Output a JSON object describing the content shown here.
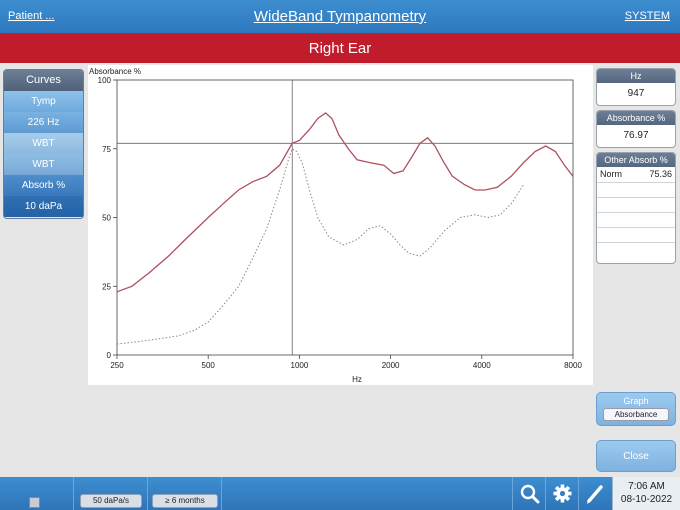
{
  "header": {
    "patient_link": "Patient ...",
    "title": "WideBand Tympanometry",
    "system_link": "SYSTEM"
  },
  "ear_banner": "Right Ear",
  "curves_panel": {
    "title": "Curves",
    "items": [
      "Tymp",
      "226 Hz",
      "WBT",
      "WBT",
      "Absorb %",
      "10 daPa"
    ]
  },
  "readouts": {
    "hz_label": "Hz",
    "hz_value": "947",
    "absorbance_label": "Absorbance %",
    "absorbance_value": "76.97",
    "other_label": "Other Absorb %",
    "other_rows": [
      {
        "name": "Norm",
        "value": "75.36"
      }
    ]
  },
  "graph_button": {
    "label": "Graph",
    "selected": "Absorbance"
  },
  "close_button": "Close",
  "bottom": {
    "pressure_rate": "50 daPa/s",
    "age": "≥ 6 months",
    "time": "7:06 AM",
    "date": "08-10-2022"
  },
  "colors": {
    "topbar": "#2e78bd",
    "ear_banner": "#c01c2c",
    "measured_curve": "#b0505e",
    "norm_curve": "#888888"
  },
  "icons": [
    "search-icon",
    "gear-icon",
    "pencil-icon"
  ],
  "chart_data": {
    "type": "line",
    "ylabel": "Absorbance %",
    "xlabel": "Hz",
    "xscale": "log",
    "xlim": [
      250,
      8000
    ],
    "ylim": [
      0,
      100
    ],
    "xticks": [
      250,
      500,
      1000,
      2000,
      4000,
      8000
    ],
    "yticks": [
      0,
      25,
      50,
      75,
      100
    ],
    "cursor": {
      "x": 947,
      "y": 76.97
    },
    "grid": false,
    "series": [
      {
        "x": [
          250,
          280,
          320,
          370,
          420,
          500,
          560,
          630,
          700,
          780,
          860,
          947,
          1000,
          1080,
          1150,
          1220,
          1280,
          1350,
          1450,
          1550,
          1700,
          1900,
          2050,
          2200,
          2350,
          2500,
          2650,
          2800,
          3000,
          3200,
          3500,
          3800,
          4100,
          4500,
          5000,
          5500,
          6000,
          6500,
          7000,
          7500,
          8000
        ],
        "y": [
          23,
          25,
          30,
          36,
          42,
          50,
          55,
          60,
          63,
          65,
          69,
          76.97,
          78,
          82,
          86,
          88,
          86,
          80,
          75,
          71,
          70,
          69,
          66,
          67,
          72,
          77,
          79,
          76,
          70,
          65,
          62,
          60,
          60,
          61,
          65,
          70,
          74,
          76,
          74,
          69,
          65
        ]
      },
      {
        "x": [
          250,
          300,
          350,
          400,
          450,
          500,
          560,
          630,
          700,
          780,
          860,
          920,
          947,
          980,
          1020,
          1080,
          1150,
          1250,
          1400,
          1550,
          1700,
          1850,
          2000,
          2150,
          2300,
          2500,
          2700,
          3000,
          3400,
          3800,
          4200,
          4600,
          5000,
          5500
        ],
        "y": [
          4,
          5,
          6,
          7,
          9,
          12,
          18,
          25,
          35,
          46,
          60,
          71,
          75,
          74,
          70,
          60,
          50,
          43,
          40,
          42,
          46,
          47,
          44,
          40,
          37,
          36,
          39,
          45,
          50,
          51,
          50,
          51,
          55,
          62
        ]
      }
    ]
  }
}
